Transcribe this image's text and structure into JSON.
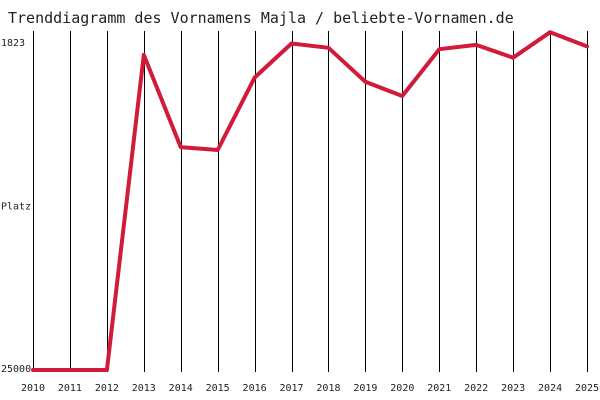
{
  "chart_data": {
    "type": "line",
    "title": "Trenddiagramm des Vornamens Majla / beliebte-Vornamen.de",
    "ylabel": "Platz",
    "y_tick_labels": [
      "1823",
      "Platz",
      "25000"
    ],
    "ylim": [
      25000,
      1823
    ],
    "inverted_y": true,
    "grid": "vertical",
    "x": [
      "2010",
      "2011",
      "2012",
      "2013",
      "2014",
      "2015",
      "2016",
      "2017",
      "2018",
      "2019",
      "2020",
      "2021",
      "2022",
      "2023",
      "2024",
      "2025"
    ],
    "series": [
      {
        "color": "#d21a3a",
        "values": [
          25000,
          25000,
          25000,
          2800,
          9300,
          9500,
          4400,
          2000,
          2300,
          4700,
          5700,
          2400,
          2100,
          3000,
          1200,
          2200
        ]
      }
    ]
  }
}
